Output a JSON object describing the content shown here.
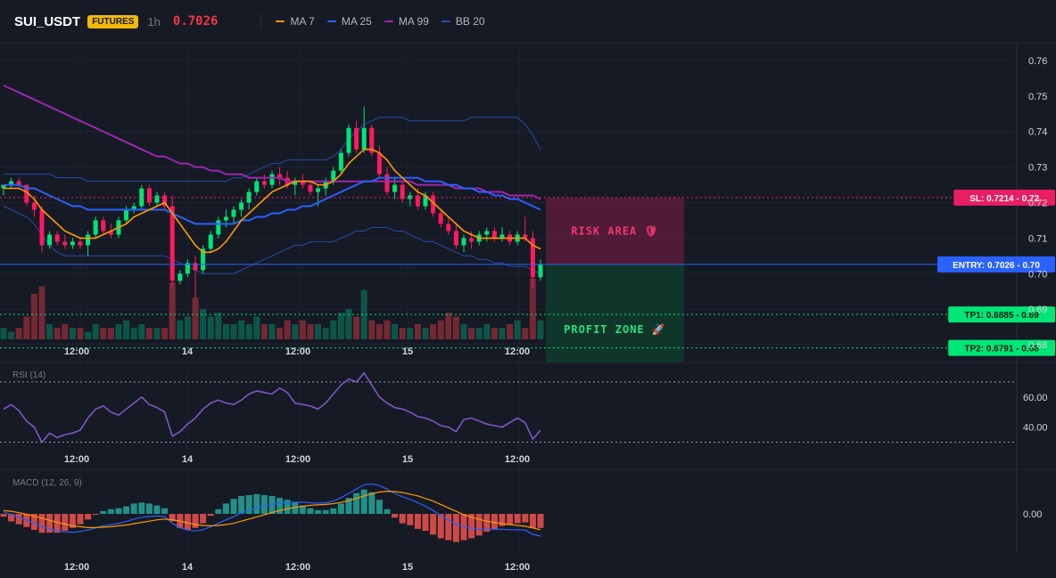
{
  "header": {
    "symbol": "SUI_USDT",
    "badge": "FUTURES",
    "timeframe": "1h",
    "last_price": "0.7026",
    "indicators": [
      {
        "label": "MA 7",
        "color": "#ff9800"
      },
      {
        "label": "MA 25",
        "color": "#2962ff"
      },
      {
        "label": "MA 99",
        "color": "#9c27b0"
      },
      {
        "label": "BB 20",
        "color": "#2b4aa8"
      }
    ]
  },
  "colors": {
    "up": "#089981",
    "up_bright": "#00e676",
    "down": "#f23645",
    "down_bright": "#ff1a5e",
    "ma7": "#ff9800",
    "ma25": "#2962ff",
    "ma99": "#9c27b0",
    "bb": "#2b4aa8",
    "rsi": "#7e57c2",
    "macd": "#2962ff",
    "signal": "#ff9800"
  },
  "price_axis": {
    "ticks": [
      "0.76",
      "0.75",
      "0.74",
      "0.73",
      "0.72",
      "0.71",
      "0.70",
      "0.69",
      "0.68"
    ]
  },
  "time_axis": {
    "labels": [
      "12:00",
      "14",
      "12:00",
      "15",
      "12:00"
    ]
  },
  "chart_data": {
    "type": "candlestick",
    "ylim": [
      0.675,
      0.765
    ],
    "candles": [
      [
        0.724,
        0.725,
        0.722,
        0.725
      ],
      [
        0.725,
        0.727,
        0.724,
        0.726
      ],
      [
        0.726,
        0.727,
        0.724,
        0.725
      ],
      [
        0.725,
        0.725,
        0.719,
        0.72
      ],
      [
        0.72,
        0.722,
        0.716,
        0.718
      ],
      [
        0.718,
        0.719,
        0.706,
        0.708
      ],
      [
        0.708,
        0.712,
        0.707,
        0.711
      ],
      [
        0.711,
        0.712,
        0.708,
        0.709
      ],
      [
        0.709,
        0.711,
        0.707,
        0.708
      ],
      [
        0.708,
        0.71,
        0.707,
        0.709
      ],
      [
        0.709,
        0.71,
        0.707,
        0.708
      ],
      [
        0.708,
        0.712,
        0.705,
        0.711
      ],
      [
        0.711,
        0.716,
        0.71,
        0.715
      ],
      [
        0.715,
        0.716,
        0.711,
        0.712
      ],
      [
        0.712,
        0.714,
        0.71,
        0.711
      ],
      [
        0.711,
        0.716,
        0.71,
        0.715
      ],
      [
        0.715,
        0.719,
        0.714,
        0.718
      ],
      [
        0.718,
        0.72,
        0.717,
        0.719
      ],
      [
        0.719,
        0.725,
        0.718,
        0.724
      ],
      [
        0.724,
        0.725,
        0.719,
        0.72
      ],
      [
        0.72,
        0.723,
        0.719,
        0.722
      ],
      [
        0.722,
        0.723,
        0.718,
        0.719
      ],
      [
        0.719,
        0.722,
        0.696,
        0.698
      ],
      [
        0.698,
        0.701,
        0.697,
        0.7
      ],
      [
        0.7,
        0.704,
        0.699,
        0.703
      ],
      [
        0.703,
        0.705,
        0.693,
        0.701
      ],
      [
        0.701,
        0.708,
        0.7,
        0.707
      ],
      [
        0.707,
        0.712,
        0.706,
        0.711
      ],
      [
        0.711,
        0.716,
        0.71,
        0.715
      ],
      [
        0.715,
        0.718,
        0.713,
        0.716
      ],
      [
        0.716,
        0.719,
        0.714,
        0.718
      ],
      [
        0.718,
        0.721,
        0.716,
        0.72
      ],
      [
        0.72,
        0.724,
        0.718,
        0.723
      ],
      [
        0.723,
        0.727,
        0.722,
        0.726
      ],
      [
        0.726,
        0.728,
        0.724,
        0.725
      ],
      [
        0.725,
        0.729,
        0.724,
        0.728
      ],
      [
        0.728,
        0.73,
        0.725,
        0.727
      ],
      [
        0.727,
        0.729,
        0.724,
        0.725
      ],
      [
        0.725,
        0.727,
        0.722,
        0.726
      ],
      [
        0.726,
        0.728,
        0.724,
        0.725
      ],
      [
        0.725,
        0.726,
        0.722,
        0.723
      ],
      [
        0.723,
        0.725,
        0.719,
        0.724
      ],
      [
        0.724,
        0.727,
        0.722,
        0.726
      ],
      [
        0.726,
        0.73,
        0.725,
        0.729
      ],
      [
        0.729,
        0.735,
        0.728,
        0.734
      ],
      [
        0.734,
        0.742,
        0.733,
        0.741
      ],
      [
        0.741,
        0.743,
        0.734,
        0.735
      ],
      [
        0.735,
        0.747,
        0.734,
        0.741
      ],
      [
        0.741,
        0.742,
        0.733,
        0.734
      ],
      [
        0.734,
        0.736,
        0.727,
        0.728
      ],
      [
        0.728,
        0.73,
        0.722,
        0.723
      ],
      [
        0.723,
        0.727,
        0.721,
        0.725
      ],
      [
        0.725,
        0.726,
        0.72,
        0.721
      ],
      [
        0.721,
        0.723,
        0.719,
        0.722
      ],
      [
        0.722,
        0.724,
        0.718,
        0.719
      ],
      [
        0.719,
        0.723,
        0.718,
        0.722
      ],
      [
        0.722,
        0.723,
        0.716,
        0.717
      ],
      [
        0.717,
        0.718,
        0.713,
        0.714
      ],
      [
        0.714,
        0.716,
        0.711,
        0.712
      ],
      [
        0.712,
        0.714,
        0.707,
        0.708
      ],
      [
        0.708,
        0.711,
        0.706,
        0.71
      ],
      [
        0.71,
        0.712,
        0.707,
        0.709
      ],
      [
        0.709,
        0.712,
        0.708,
        0.711
      ],
      [
        0.711,
        0.713,
        0.709,
        0.712
      ],
      [
        0.712,
        0.713,
        0.709,
        0.71
      ],
      [
        0.71,
        0.713,
        0.709,
        0.711
      ],
      [
        0.711,
        0.712,
        0.708,
        0.709
      ],
      [
        0.709,
        0.712,
        0.708,
        0.711
      ],
      [
        0.711,
        0.716,
        0.709,
        0.71
      ],
      [
        0.71,
        0.712,
        0.696,
        0.699
      ],
      [
        0.699,
        0.704,
        0.698,
        0.7026
      ]
    ],
    "volumes": [
      3,
      2,
      3,
      6,
      12,
      14,
      4,
      3,
      4,
      3,
      3,
      2,
      4,
      3,
      3,
      4,
      5,
      3,
      4,
      3,
      3,
      3,
      15,
      5,
      6,
      11,
      8,
      6,
      7,
      4,
      4,
      5,
      4,
      6,
      4,
      4,
      3,
      5,
      4,
      5,
      4,
      4,
      3,
      5,
      7,
      8,
      6,
      13,
      5,
      4,
      5,
      4,
      3,
      3,
      4,
      3,
      4,
      5,
      7,
      6,
      4,
      3,
      3,
      4,
      3,
      3,
      4,
      5,
      3,
      16,
      5
    ],
    "ma7": [
      0.724,
      0.724,
      0.724,
      0.723,
      0.721,
      0.718,
      0.716,
      0.714,
      0.712,
      0.711,
      0.71,
      0.71,
      0.71,
      0.711,
      0.712,
      0.713,
      0.714,
      0.716,
      0.717,
      0.718,
      0.719,
      0.72,
      0.717,
      0.714,
      0.711,
      0.708,
      0.706,
      0.706,
      0.707,
      0.709,
      0.712,
      0.715,
      0.717,
      0.719,
      0.721,
      0.723,
      0.724,
      0.725,
      0.726,
      0.726,
      0.726,
      0.725,
      0.725,
      0.726,
      0.728,
      0.731,
      0.733,
      0.735,
      0.735,
      0.734,
      0.732,
      0.729,
      0.727,
      0.725,
      0.723,
      0.722,
      0.72,
      0.718,
      0.716,
      0.714,
      0.712,
      0.711,
      0.71,
      0.71,
      0.71,
      0.71,
      0.71,
      0.71,
      0.71,
      0.708,
      0.707
    ],
    "ma25": [
      0.725,
      0.725,
      0.725,
      0.724,
      0.724,
      0.723,
      0.722,
      0.721,
      0.72,
      0.719,
      0.719,
      0.718,
      0.718,
      0.718,
      0.718,
      0.718,
      0.718,
      0.718,
      0.718,
      0.718,
      0.718,
      0.718,
      0.717,
      0.716,
      0.715,
      0.714,
      0.714,
      0.714,
      0.714,
      0.714,
      0.714,
      0.715,
      0.715,
      0.716,
      0.716,
      0.717,
      0.717,
      0.718,
      0.718,
      0.719,
      0.719,
      0.72,
      0.721,
      0.722,
      0.723,
      0.724,
      0.725,
      0.726,
      0.726,
      0.727,
      0.727,
      0.727,
      0.727,
      0.727,
      0.727,
      0.726,
      0.726,
      0.726,
      0.725,
      0.725,
      0.724,
      0.724,
      0.723,
      0.723,
      0.722,
      0.722,
      0.721,
      0.721,
      0.72,
      0.719,
      0.718
    ],
    "ma99": [
      0.753,
      0.752,
      0.751,
      0.75,
      0.749,
      0.748,
      0.747,
      0.746,
      0.745,
      0.744,
      0.743,
      0.742,
      0.741,
      0.74,
      0.739,
      0.738,
      0.737,
      0.736,
      0.735,
      0.734,
      0.733,
      0.733,
      0.732,
      0.731,
      0.731,
      0.73,
      0.73,
      0.729,
      0.729,
      0.728,
      0.728,
      0.728,
      0.727,
      0.727,
      0.727,
      0.727,
      0.727,
      0.726,
      0.726,
      0.726,
      0.726,
      0.726,
      0.726,
      0.726,
      0.726,
      0.726,
      0.726,
      0.726,
      0.726,
      0.726,
      0.726,
      0.726,
      0.726,
      0.726,
      0.725,
      0.725,
      0.725,
      0.725,
      0.725,
      0.724,
      0.724,
      0.724,
      0.724,
      0.723,
      0.723,
      0.723,
      0.722,
      0.722,
      0.722,
      0.722,
      0.721
    ],
    "bb_upper": [
      0.728,
      0.728,
      0.728,
      0.728,
      0.728,
      0.728,
      0.728,
      0.727,
      0.727,
      0.727,
      0.727,
      0.726,
      0.726,
      0.726,
      0.726,
      0.726,
      0.726,
      0.726,
      0.726,
      0.726,
      0.726,
      0.726,
      0.726,
      0.726,
      0.726,
      0.726,
      0.726,
      0.726,
      0.726,
      0.726,
      0.727,
      0.727,
      0.728,
      0.729,
      0.73,
      0.731,
      0.731,
      0.732,
      0.732,
      0.732,
      0.732,
      0.732,
      0.732,
      0.733,
      0.735,
      0.738,
      0.74,
      0.742,
      0.743,
      0.744,
      0.744,
      0.744,
      0.744,
      0.743,
      0.743,
      0.743,
      0.743,
      0.743,
      0.743,
      0.743,
      0.743,
      0.744,
      0.744,
      0.744,
      0.744,
      0.744,
      0.744,
      0.744,
      0.742,
      0.739,
      0.735
    ],
    "bb_lower": [
      0.719,
      0.718,
      0.717,
      0.716,
      0.714,
      0.711,
      0.708,
      0.706,
      0.705,
      0.705,
      0.705,
      0.705,
      0.705,
      0.705,
      0.705,
      0.705,
      0.705,
      0.705,
      0.705,
      0.705,
      0.705,
      0.705,
      0.704,
      0.703,
      0.702,
      0.701,
      0.7,
      0.7,
      0.7,
      0.7,
      0.7,
      0.701,
      0.702,
      0.703,
      0.704,
      0.705,
      0.706,
      0.707,
      0.708,
      0.708,
      0.709,
      0.709,
      0.709,
      0.709,
      0.71,
      0.711,
      0.712,
      0.712,
      0.713,
      0.713,
      0.713,
      0.712,
      0.712,
      0.711,
      0.71,
      0.709,
      0.709,
      0.708,
      0.707,
      0.706,
      0.705,
      0.705,
      0.704,
      0.704,
      0.703,
      0.703,
      0.702,
      0.702,
      0.702,
      0.701,
      0.7
    ],
    "rsi": [
      52,
      55,
      51,
      44,
      40,
      30,
      36,
      33,
      35,
      36,
      38,
      46,
      52,
      54,
      50,
      48,
      52,
      56,
      60,
      55,
      53,
      50,
      34,
      37,
      42,
      46,
      52,
      56,
      58,
      56,
      55,
      58,
      62,
      64,
      63,
      62,
      66,
      63,
      56,
      55,
      54,
      52,
      56,
      62,
      68,
      72,
      70,
      76,
      68,
      60,
      56,
      53,
      52,
      50,
      47,
      46,
      44,
      41,
      40,
      37,
      45,
      46,
      44,
      42,
      41,
      40,
      43,
      46,
      43,
      32,
      38
    ],
    "macd": [
      0.0005,
      -0.0002,
      -0.0008,
      -0.0015,
      -0.0022,
      -0.003,
      -0.0035,
      -0.004,
      -0.0042,
      -0.0043,
      -0.0041,
      -0.0038,
      -0.0033,
      -0.0028,
      -0.0025,
      -0.0022,
      -0.0018,
      -0.0012,
      -0.0008,
      -0.0006,
      -0.0005,
      -0.0006,
      -0.0022,
      -0.0032,
      -0.0038,
      -0.004,
      -0.0037,
      -0.003,
      -0.0022,
      -0.0014,
      -0.0006,
      0.0002,
      0.0008,
      0.0014,
      0.0018,
      0.0022,
      0.0025,
      0.0027,
      0.0027,
      0.0027,
      0.0026,
      0.0025,
      0.0026,
      0.003,
      0.0038,
      0.0048,
      0.0058,
      0.0068,
      0.007,
      0.0066,
      0.0058,
      0.0048,
      0.004,
      0.0034,
      0.0026,
      0.0018,
      0.0008,
      -0.0004,
      -0.0014,
      -0.0024,
      -0.003,
      -0.0034,
      -0.0036,
      -0.0036,
      -0.0036,
      -0.0036,
      -0.0037,
      -0.0037,
      -0.0038,
      -0.0048,
      -0.0052
    ],
    "signal": [
      0.0008,
      0.0006,
      0.0003,
      -0.0001,
      -0.0005,
      -0.001,
      -0.0015,
      -0.002,
      -0.0024,
      -0.0028,
      -0.003,
      -0.0032,
      -0.0032,
      -0.0031,
      -0.003,
      -0.0028,
      -0.0026,
      -0.0023,
      -0.002,
      -0.0017,
      -0.0014,
      -0.0012,
      -0.0014,
      -0.0017,
      -0.0021,
      -0.0025,
      -0.0027,
      -0.0028,
      -0.0027,
      -0.0025,
      -0.0022,
      -0.0017,
      -0.0012,
      -0.0007,
      -0.0002,
      0.0003,
      0.0008,
      0.0012,
      0.0015,
      0.0018,
      0.002,
      0.0021,
      0.0022,
      0.0024,
      0.0027,
      0.0031,
      0.0036,
      0.0042,
      0.0047,
      0.0051,
      0.0053,
      0.0052,
      0.005,
      0.0046,
      0.0042,
      0.0036,
      0.003,
      0.0022,
      0.0014,
      0.0006,
      -0.0002,
      -0.0008,
      -0.0013,
      -0.0017,
      -0.002,
      -0.0023,
      -0.0025,
      -0.0027,
      -0.0029,
      -0.0033,
      -0.0037
    ],
    "levels": {
      "sl": 0.7214,
      "entry": 0.7026,
      "tp1": 0.6885,
      "tp2": 0.6791
    }
  },
  "levels_labels": {
    "sl": "SL: 0.7214 - 0.72",
    "entry": "ENTRY: 0.7026 - 0.70",
    "tp1": "TP1: 0.6885 - 0.69",
    "tp2": "TP2: 0.6791 - 0.68"
  },
  "zones": {
    "risk": "RISK AREA 🛡",
    "profit": "PROFIT ZONE 🚀"
  },
  "rsi_panel": {
    "label": "RSI (14)",
    "ticks": [
      "60.00",
      "40.00"
    ],
    "upper": 70,
    "lower": 30
  },
  "macd_panel": {
    "label": "MACD (12, 26, 9)",
    "tick": "0.00"
  }
}
